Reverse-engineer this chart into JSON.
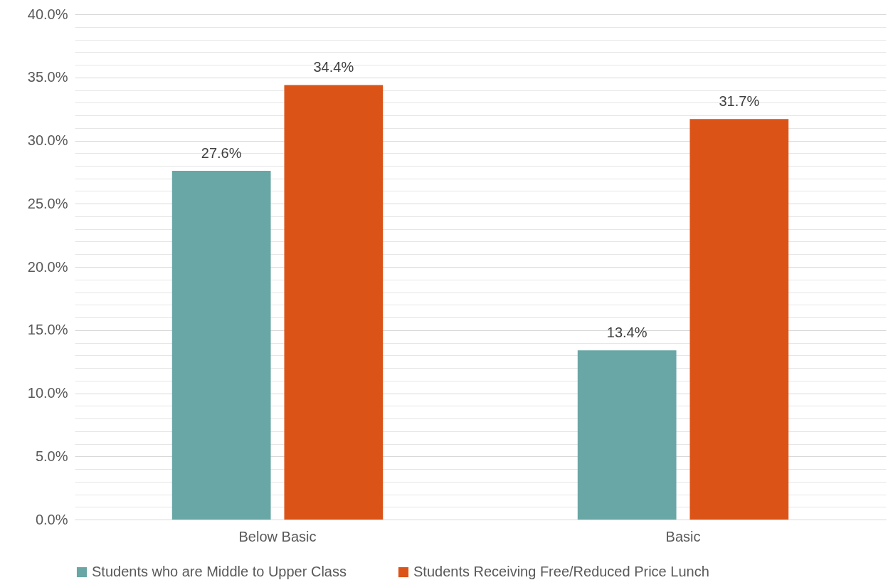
{
  "chart_data": {
    "type": "bar",
    "categories": [
      "Below Basic",
      "Basic"
    ],
    "series": [
      {
        "name": "Students who are Middle to Upper Class",
        "color": "#69a7a6",
        "values": [
          27.6,
          13.4
        ],
        "value_labels": [
          "27.6%",
          "13.4%"
        ]
      },
      {
        "name": "Students Receiving Free/Reduced Price Lunch",
        "color": "#dc5318",
        "values": [
          34.4,
          31.7
        ],
        "value_labels": [
          "34.4%",
          "31.7%"
        ]
      }
    ],
    "ylim": [
      0,
      40
    ],
    "yticks": [
      {
        "value": 0,
        "label": "0.0%"
      },
      {
        "value": 1,
        "label": null
      },
      {
        "value": 2,
        "label": null
      },
      {
        "value": 3,
        "label": null
      },
      {
        "value": 4,
        "label": null
      },
      {
        "value": 5,
        "label": "5.0%"
      },
      {
        "value": 6,
        "label": null
      },
      {
        "value": 7,
        "label": null
      },
      {
        "value": 8,
        "label": null
      },
      {
        "value": 9,
        "label": null
      },
      {
        "value": 10,
        "label": "10.0%"
      },
      {
        "value": 11,
        "label": null
      },
      {
        "value": 12,
        "label": null
      },
      {
        "value": 13,
        "label": null
      },
      {
        "value": 14,
        "label": null
      },
      {
        "value": 15,
        "label": "15.0%"
      },
      {
        "value": 16,
        "label": null
      },
      {
        "value": 17,
        "label": null
      },
      {
        "value": 18,
        "label": null
      },
      {
        "value": 19,
        "label": null
      },
      {
        "value": 20,
        "label": "20.0%"
      },
      {
        "value": 21,
        "label": null
      },
      {
        "value": 22,
        "label": null
      },
      {
        "value": 23,
        "label": null
      },
      {
        "value": 24,
        "label": null
      },
      {
        "value": 25,
        "label": "25.0%"
      },
      {
        "value": 26,
        "label": null
      },
      {
        "value": 27,
        "label": null
      },
      {
        "value": 28,
        "label": null
      },
      {
        "value": 29,
        "label": null
      },
      {
        "value": 30,
        "label": "30.0%"
      },
      {
        "value": 31,
        "label": null
      },
      {
        "value": 32,
        "label": null
      },
      {
        "value": 33,
        "label": null
      },
      {
        "value": 34,
        "label": null
      },
      {
        "value": 35,
        "label": "35.0%"
      },
      {
        "value": 36,
        "label": null
      },
      {
        "value": 37,
        "label": null
      },
      {
        "value": 38,
        "label": null
      },
      {
        "value": 39,
        "label": null
      },
      {
        "value": 40,
        "label": "40.0%"
      }
    ],
    "grid": "y",
    "legend": "bottom"
  }
}
